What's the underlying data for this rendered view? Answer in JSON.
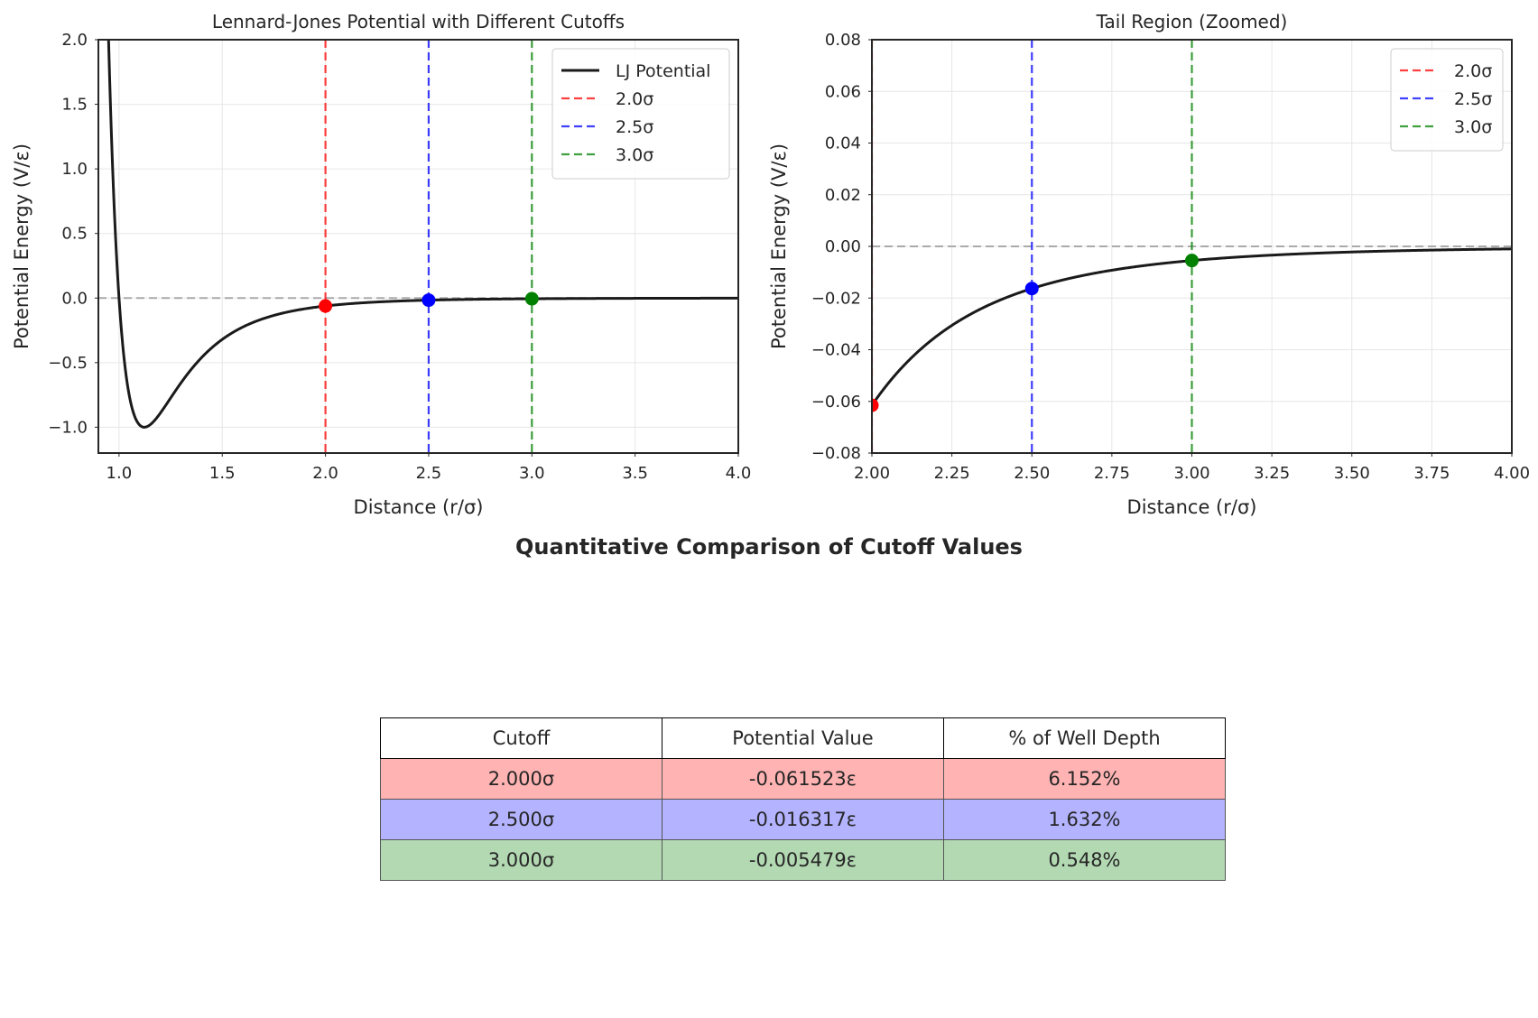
{
  "chart_data": [
    {
      "type": "line",
      "title": "Lennard-Jones Potential with Different Cutoffs",
      "xlabel": "Distance (r/σ)",
      "ylabel": "Potential Energy (V/ε)",
      "xlim": [
        0.9,
        4.0
      ],
      "ylim": [
        -1.2,
        2.0
      ],
      "xticks": [
        "1.0",
        "1.5",
        "2.0",
        "2.5",
        "3.0",
        "3.5",
        "4.0"
      ],
      "yticks": [
        "−1.0",
        "−0.5",
        "0.0",
        "0.5",
        "1.0",
        "1.5",
        "2.0"
      ],
      "grid": true,
      "legend_position": "top-right",
      "series": [
        {
          "name": "LJ Potential",
          "function": "4*(r^-12 - r^-6)",
          "color": "#1a1a1a",
          "style": "solid"
        }
      ],
      "vlines": [
        {
          "name": "2.0σ",
          "x": 2.0,
          "color": "#ff0000",
          "style": "dashed"
        },
        {
          "name": "2.5σ",
          "x": 2.5,
          "color": "#0000ff",
          "style": "dashed"
        },
        {
          "name": "3.0σ",
          "x": 3.0,
          "color": "#008000",
          "style": "dashed"
        }
      ],
      "hline": {
        "y": 0.0,
        "color": "#aaaaaa",
        "style": "dashed"
      },
      "points": [
        {
          "x": 2.0,
          "y": -0.061523,
          "color": "#ff0000"
        },
        {
          "x": 2.5,
          "y": -0.016317,
          "color": "#0000ff"
        },
        {
          "x": 3.0,
          "y": -0.005479,
          "color": "#008000"
        }
      ]
    },
    {
      "type": "line",
      "title": "Tail Region (Zoomed)",
      "xlabel": "Distance (r/σ)",
      "ylabel": "Potential Energy (V/ε)",
      "xlim": [
        2.0,
        4.0
      ],
      "ylim": [
        -0.08,
        0.08
      ],
      "xticks": [
        "2.00",
        "2.25",
        "2.50",
        "2.75",
        "3.00",
        "3.25",
        "3.50",
        "3.75",
        "4.00"
      ],
      "yticks": [
        "−0.08",
        "−0.06",
        "−0.04",
        "−0.02",
        "0.00",
        "0.02",
        "0.04",
        "0.06",
        "0.08"
      ],
      "grid": true,
      "legend_position": "top-right",
      "series": [
        {
          "function": "4*(r^-12 - r^-6)",
          "color": "#1a1a1a",
          "style": "solid"
        }
      ],
      "vlines": [
        {
          "name": "2.0σ",
          "x": 2.0,
          "color": "#ff0000",
          "style": "dashed"
        },
        {
          "name": "2.5σ",
          "x": 2.5,
          "color": "#0000ff",
          "style": "dashed"
        },
        {
          "name": "3.0σ",
          "x": 3.0,
          "color": "#008000",
          "style": "dashed"
        }
      ],
      "hline": {
        "y": 0.0,
        "color": "#aaaaaa",
        "style": "dashed"
      },
      "points": [
        {
          "x": 2.0,
          "y": -0.061523,
          "color": "#ff0000"
        },
        {
          "x": 2.5,
          "y": -0.016317,
          "color": "#0000ff"
        },
        {
          "x": 3.0,
          "y": -0.005479,
          "color": "#008000"
        }
      ]
    },
    {
      "type": "table",
      "title": "Quantitative Comparison of Cutoff Values",
      "columns": [
        "Cutoff",
        "Potential Value",
        "% of Well Depth"
      ],
      "rows": [
        {
          "cells": [
            "2.000σ",
            "-0.061523ε",
            "6.152%"
          ],
          "color": "#ffb3b3"
        },
        {
          "cells": [
            "2.500σ",
            "-0.016317ε",
            "1.632%"
          ],
          "color": "#b3b3ff"
        },
        {
          "cells": [
            "3.000σ",
            "-0.005479ε",
            "0.548%"
          ],
          "color": "#b3d9b3"
        }
      ]
    }
  ]
}
